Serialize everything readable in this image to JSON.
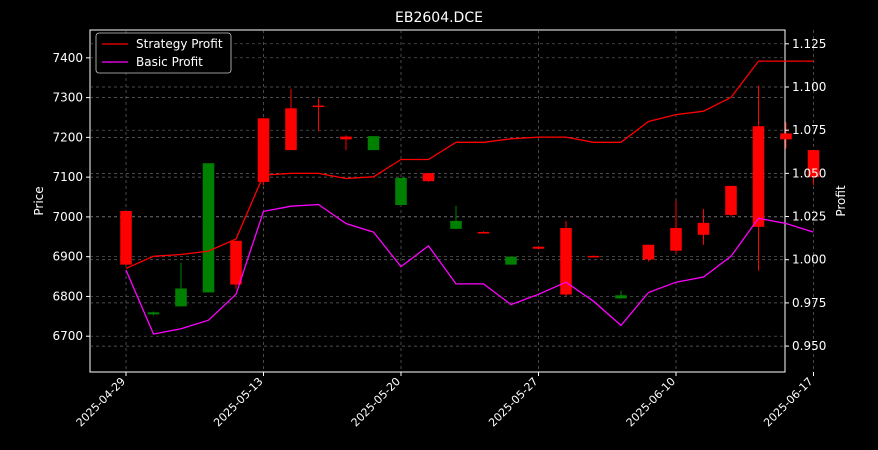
{
  "chart_data": {
    "type": "candlestick",
    "title": "EB2604.DCE",
    "xlabel": "",
    "ylabel_left": "Price",
    "ylabel_right": "Profit",
    "ylim_left": [
      6610,
      7470
    ],
    "ylim_right": [
      0.935,
      1.133
    ],
    "grid": true,
    "legend_position": "top-left",
    "x_tick_labels": [
      "2025-04-29",
      "2025-05-13",
      "2025-05-20",
      "2025-05-27",
      "2025-06-10",
      "2025-06-17"
    ],
    "y_ticks_left": [
      6700,
      6800,
      6900,
      7000,
      7100,
      7200,
      7300,
      7400
    ],
    "y_ticks_right": [
      "0.950",
      "0.975",
      "1.000",
      "1.025",
      "1.050",
      "1.075",
      "1.100",
      "1.125"
    ],
    "candles": [
      {
        "open": 7015,
        "close": 6880,
        "high": 7015,
        "low": 6880
      },
      {
        "open": 6755,
        "close": 6760,
        "high": 6762,
        "low": 6752
      },
      {
        "open": 6775,
        "close": 6820,
        "high": 6885,
        "low": 6775
      },
      {
        "open": 6810,
        "close": 7135,
        "high": 7135,
        "low": 6810
      },
      {
        "open": 6940,
        "close": 6830,
        "high": 6940,
        "low": 6820
      },
      {
        "open": 7248,
        "close": 7088,
        "high": 7248,
        "low": 7080
      },
      {
        "open": 7273,
        "close": 7168,
        "high": 7322,
        "low": 7168
      },
      {
        "open": 7280,
        "close": 7278,
        "high": 7298,
        "low": 7215
      },
      {
        "open": 7202,
        "close": 7195,
        "high": 7205,
        "low": 7168
      },
      {
        "open": 7168,
        "close": 7203,
        "high": 7203,
        "low": 7168
      },
      {
        "open": 7030,
        "close": 7098,
        "high": 7098,
        "low": 7030
      },
      {
        "open": 7110,
        "close": 7090,
        "high": 7110,
        "low": 7088
      },
      {
        "open": 6970,
        "close": 6990,
        "high": 7028,
        "low": 6970
      },
      {
        "open": 6962,
        "close": 6960,
        "high": 6964,
        "low": 6958
      },
      {
        "open": 6880,
        "close": 6900,
        "high": 6900,
        "low": 6880
      },
      {
        "open": 6925,
        "close": 6920,
        "high": 6926,
        "low": 6918
      },
      {
        "open": 6972,
        "close": 6805,
        "high": 6990,
        "low": 6800
      },
      {
        "open": 6902,
        "close": 6900,
        "high": 6903,
        "low": 6898
      },
      {
        "open": 6795,
        "close": 6803,
        "high": 6815,
        "low": 6795
      },
      {
        "open": 6930,
        "close": 6893,
        "high": 6930,
        "low": 6888
      },
      {
        "open": 6972,
        "close": 6915,
        "high": 7040,
        "low": 6908
      },
      {
        "open": 6985,
        "close": 6955,
        "high": 7020,
        "low": 6930
      },
      {
        "open": 7078,
        "close": 7005,
        "high": 7078,
        "low": 7000
      },
      {
        "open": 7228,
        "close": 6975,
        "high": 7330,
        "low": 6865
      },
      {
        "open": 7210,
        "close": 7195,
        "high": 7238,
        "low": 7172
      },
      {
        "open": 7168,
        "close": 7100,
        "high": 7168,
        "low": 7080
      }
    ],
    "series": [
      {
        "name": "Strategy Profit",
        "color": "#ff0000",
        "values": [
          0.995,
          1.002,
          1.003,
          1.005,
          1.012,
          1.049,
          1.05,
          1.05,
          1.047,
          1.048,
          1.058,
          1.058,
          1.068,
          1.068,
          1.07,
          1.071,
          1.071,
          1.068,
          1.068,
          1.08,
          1.084,
          1.086,
          1.094,
          1.115,
          1.115,
          1.115
        ]
      },
      {
        "name": "Basic Profit",
        "color": "#ff00ff",
        "values": [
          0.994,
          0.957,
          0.96,
          0.965,
          0.98,
          1.028,
          1.031,
          1.032,
          1.021,
          1.016,
          0.996,
          1.008,
          0.986,
          0.986,
          0.974,
          0.98,
          0.987,
          0.976,
          0.962,
          0.981,
          0.987,
          0.99,
          1.002,
          1.024,
          1.021,
          1.016
        ]
      }
    ],
    "colors": {
      "up": "#ff0000",
      "down": "#008000",
      "axes": "#ffffff",
      "grid": "#808080",
      "background": "#000000"
    }
  }
}
